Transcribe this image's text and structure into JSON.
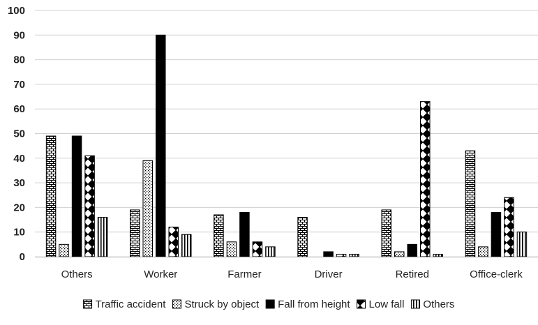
{
  "chart_data": {
    "type": "bar",
    "categories": [
      "Others",
      "Worker",
      "Farmer",
      "Driver",
      "Retired",
      "Office-clerk"
    ],
    "series": [
      {
        "name": "Traffic accident",
        "pattern": "brick",
        "values": [
          49,
          19,
          17,
          16,
          19,
          43
        ]
      },
      {
        "name": "Struck by object",
        "pattern": "dots",
        "values": [
          5,
          39,
          6,
          0,
          2,
          4
        ]
      },
      {
        "name": "Fall from height",
        "pattern": "solid",
        "values": [
          49,
          90,
          18,
          2,
          5,
          18
        ]
      },
      {
        "name": "Low fall",
        "pattern": "diamonds",
        "values": [
          41,
          12,
          6,
          1,
          63,
          24
        ]
      },
      {
        "name": "Others",
        "pattern": "vstripes",
        "values": [
          16,
          9,
          4,
          1,
          1,
          10
        ]
      }
    ],
    "ylim": [
      0,
      100
    ],
    "yticks": [
      "0",
      "10",
      "20",
      "30",
      "40",
      "50",
      "60",
      "70",
      "80",
      "90",
      "100"
    ],
    "grid": true,
    "legend_position": "bottom",
    "colors": {
      "bar": "#000000",
      "fill": "#ffffff",
      "grid": "#d0d0d0"
    }
  }
}
